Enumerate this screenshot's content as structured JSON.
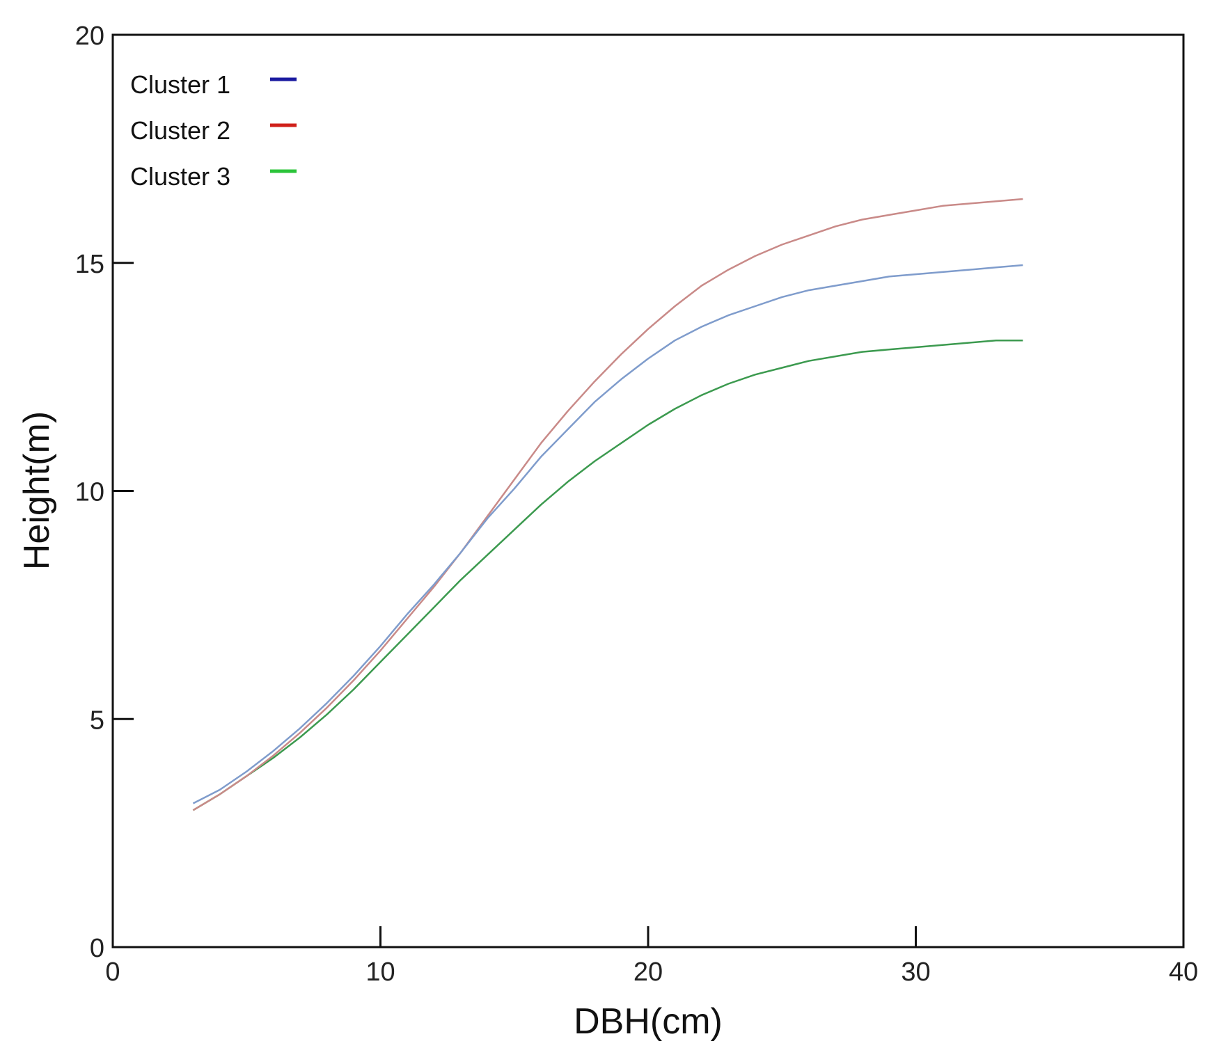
{
  "chart_data": {
    "type": "line",
    "title": "",
    "xlabel": "DBH(cm)",
    "ylabel": "Height(m)",
    "xlim": [
      0,
      40
    ],
    "ylim": [
      0,
      20
    ],
    "x_ticks": [
      "0",
      "10",
      "20",
      "30",
      "40"
    ],
    "y_ticks": [
      "0",
      "5",
      "10",
      "15",
      "20"
    ],
    "grid": false,
    "legend_position": "top-left",
    "x": [
      3,
      4,
      5,
      6,
      7,
      8,
      9,
      10,
      11,
      12,
      13,
      14,
      15,
      16,
      17,
      18,
      19,
      20,
      21,
      22,
      23,
      24,
      25,
      26,
      27,
      28,
      29,
      30,
      31,
      32,
      33,
      34
    ],
    "series": [
      {
        "name": "Cluster 1",
        "legend_color": "#1a1aa0",
        "line_color": "#7f9ccc",
        "values": [
          3.15,
          3.45,
          3.85,
          4.3,
          4.8,
          5.35,
          5.95,
          6.6,
          7.3,
          7.95,
          8.65,
          9.4,
          10.05,
          10.75,
          11.35,
          11.95,
          12.45,
          12.9,
          13.3,
          13.6,
          13.85,
          14.05,
          14.25,
          14.4,
          14.5,
          14.6,
          14.7,
          14.75,
          14.8,
          14.85,
          14.9,
          14.95
        ]
      },
      {
        "name": "Cluster 2",
        "legend_color": "#d0201a",
        "line_color": "#c98a88",
        "values": [
          3.0,
          3.35,
          3.75,
          4.2,
          4.7,
          5.25,
          5.85,
          6.5,
          7.2,
          7.9,
          8.65,
          9.45,
          10.25,
          11.05,
          11.75,
          12.4,
          13.0,
          13.55,
          14.05,
          14.5,
          14.85,
          15.15,
          15.4,
          15.6,
          15.8,
          15.95,
          16.05,
          16.15,
          16.25,
          16.3,
          16.35,
          16.4
        ]
      },
      {
        "name": "Cluster 3",
        "legend_color": "#2bc43a",
        "line_color": "#3c9a4f",
        "values": [
          3.0,
          3.35,
          3.75,
          4.15,
          4.6,
          5.1,
          5.65,
          6.25,
          6.85,
          7.45,
          8.05,
          8.6,
          9.15,
          9.7,
          10.2,
          10.65,
          11.05,
          11.45,
          11.8,
          12.1,
          12.35,
          12.55,
          12.7,
          12.85,
          12.95,
          13.05,
          13.1,
          13.15,
          13.2,
          13.25,
          13.3,
          13.3
        ]
      }
    ]
  }
}
